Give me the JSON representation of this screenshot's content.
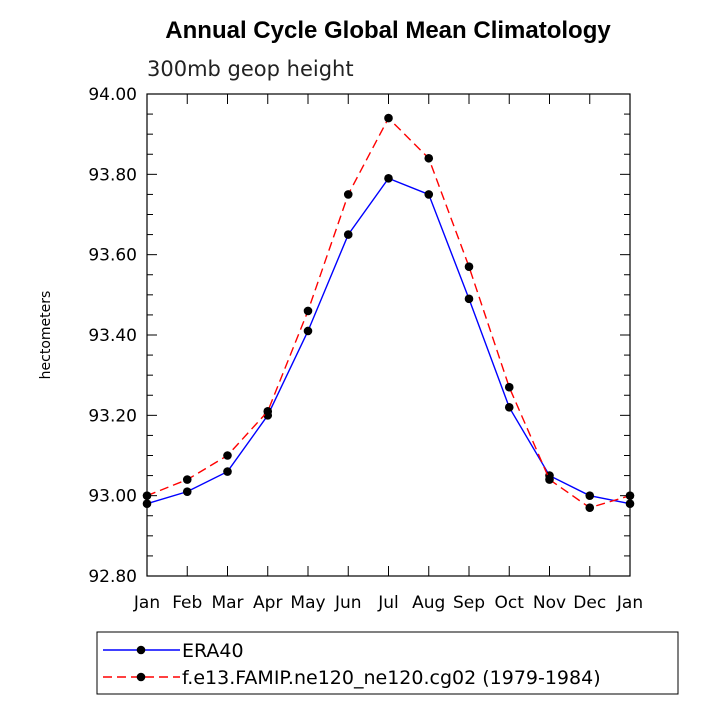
{
  "chart_data": {
    "type": "line",
    "title": "Annual Cycle Global Mean Climatology",
    "subtitle": "300mb geop height",
    "xlabel": "",
    "ylabel": "hectometers",
    "categories": [
      "Jan",
      "Feb",
      "Mar",
      "Apr",
      "May",
      "Jun",
      "Jul",
      "Aug",
      "Sep",
      "Oct",
      "Nov",
      "Dec",
      "Jan"
    ],
    "ylim": [
      92.8,
      94.0
    ],
    "yticks": [
      "92.80",
      "93.00",
      "93.20",
      "93.40",
      "93.60",
      "93.80",
      "94.00"
    ],
    "series": [
      {
        "name": "ERA40",
        "color": "#0000ff",
        "dash": "solid",
        "values": [
          92.98,
          93.01,
          93.06,
          93.2,
          93.41,
          93.65,
          93.79,
          93.75,
          93.49,
          93.22,
          93.05,
          93.0,
          92.98
        ]
      },
      {
        "name": "f.e13.FAMIP.ne120_ne120.cg02 (1979-1984)",
        "color": "#ff0000",
        "dash": "dashed",
        "values": [
          93.0,
          93.04,
          93.1,
          93.21,
          93.46,
          93.75,
          93.94,
          93.84,
          93.57,
          93.27,
          93.04,
          92.97,
          93.0
        ]
      }
    ],
    "legend_position": "bottom",
    "grid": false
  }
}
